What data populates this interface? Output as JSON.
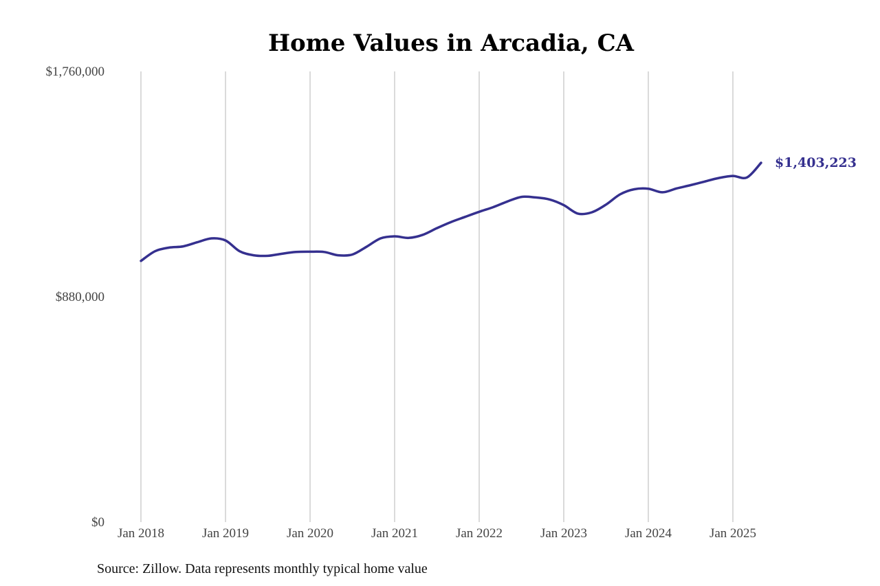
{
  "chart_data": {
    "type": "line",
    "title": "Home Values in Arcadia, CA",
    "source": "Source: Zillow. Data represents monthly typical home value",
    "ylim": [
      0,
      1760000
    ],
    "yticks": [
      0,
      880000,
      1760000
    ],
    "ytick_labels": [
      "$0",
      "$880,000",
      "$1,760,000"
    ],
    "xticks": [
      "2018-01",
      "2019-01",
      "2020-01",
      "2021-01",
      "2022-01",
      "2023-01",
      "2024-01",
      "2025-01"
    ],
    "xtick_labels": [
      "Jan 2018",
      "Jan 2019",
      "Jan 2020",
      "Jan 2021",
      "Jan 2022",
      "Jan 2023",
      "Jan 2024",
      "Jan 2025"
    ],
    "grid": "vertical",
    "line_color": "#35308f",
    "end_label": "$1,403,223",
    "series": [
      {
        "x": [
          "2018-01",
          "2018-03",
          "2018-05",
          "2018-07",
          "2018-09",
          "2018-11",
          "2019-01",
          "2019-03",
          "2019-05",
          "2019-07",
          "2019-09",
          "2019-11",
          "2020-01",
          "2020-03",
          "2020-05",
          "2020-07",
          "2020-09",
          "2020-11",
          "2021-01",
          "2021-03",
          "2021-05",
          "2021-07",
          "2021-09",
          "2021-11",
          "2022-01",
          "2022-03",
          "2022-05",
          "2022-07",
          "2022-09",
          "2022-11",
          "2023-01",
          "2023-03",
          "2023-05",
          "2023-07",
          "2023-09",
          "2023-11",
          "2024-01",
          "2024-03",
          "2024-05",
          "2024-07",
          "2024-09",
          "2024-11",
          "2025-01",
          "2025-03",
          "2025-05"
        ],
        "values": [
          1020000,
          1058000,
          1072000,
          1077000,
          1093000,
          1108000,
          1100000,
          1058000,
          1042000,
          1040000,
          1048000,
          1055000,
          1056000,
          1055000,
          1042000,
          1045000,
          1075000,
          1108000,
          1116000,
          1110000,
          1122000,
          1148000,
          1172000,
          1192000,
          1212000,
          1230000,
          1252000,
          1270000,
          1268000,
          1260000,
          1238000,
          1205000,
          1210000,
          1240000,
          1280000,
          1300000,
          1302000,
          1288000,
          1303000,
          1316000,
          1330000,
          1344000,
          1352000,
          1346000,
          1403223
        ]
      }
    ]
  }
}
